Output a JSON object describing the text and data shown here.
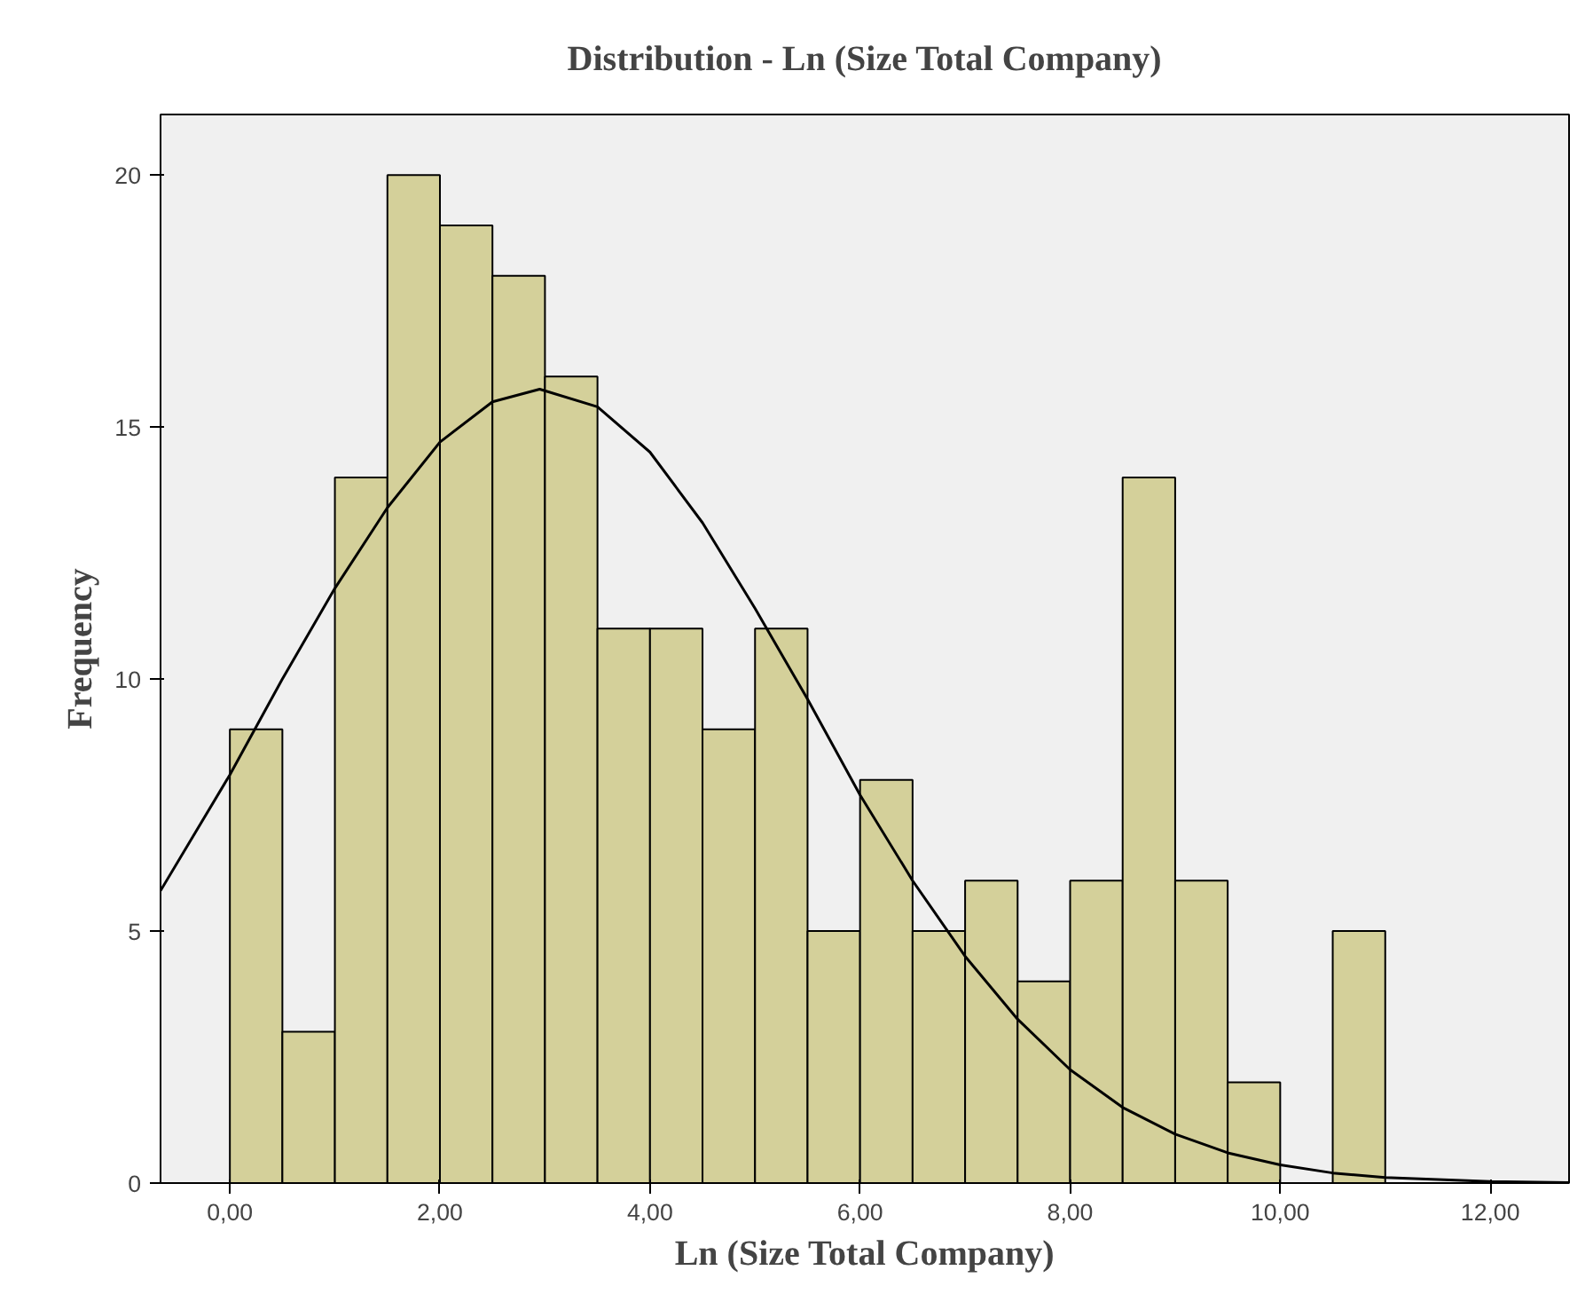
{
  "chart_data": {
    "type": "histogram",
    "title": "Distribution - Ln (Size Total Company)",
    "xlabel": "Ln (Size Total Company)",
    "ylabel": "Frequency",
    "bins": [
      0,
      0.5,
      1,
      1.5,
      2,
      2.5,
      3,
      3.5,
      4,
      4.5,
      5,
      5.5,
      6,
      6.5,
      7,
      7.5,
      8,
      8.5,
      9,
      9.5,
      10,
      10.5,
      11
    ],
    "values": [
      9,
      3,
      14,
      20,
      19,
      18,
      16,
      11,
      11,
      9,
      11,
      5,
      8,
      5,
      6,
      4,
      6,
      14,
      6,
      2,
      0,
      5
    ],
    "color": "#d4d09a",
    "series": [
      {
        "type": "line",
        "color": "#000000",
        "x": [
          -0.66,
          0,
          0.5,
          1,
          1.5,
          2,
          2.5,
          2.95,
          3.5,
          4,
          4.5,
          5,
          5.5,
          6,
          6.5,
          7,
          7.5,
          8,
          8.5,
          9,
          9.5,
          10,
          10.5,
          11,
          12,
          12.75
        ],
        "values": [
          5.8,
          8.1,
          10.0,
          11.8,
          13.4,
          14.7,
          15.5,
          15.75,
          15.4,
          14.5,
          13.1,
          11.4,
          9.6,
          7.7,
          6.0,
          4.5,
          3.25,
          2.25,
          1.5,
          0.97,
          0.6,
          0.36,
          0.2,
          0.11,
          0.03,
          0.01
        ]
      }
    ],
    "xlim": [
      -0.66,
      12.75
    ],
    "ylim": [
      0,
      21.2
    ],
    "xticks": [
      {
        "value": 0,
        "label": "0,00"
      },
      {
        "value": 2,
        "label": "2,00"
      },
      {
        "value": 4,
        "label": "4,00"
      },
      {
        "value": 6,
        "label": "6,00"
      },
      {
        "value": 8,
        "label": "8,00"
      },
      {
        "value": 10,
        "label": "10,00"
      },
      {
        "value": 12,
        "label": "12,00"
      }
    ],
    "yticks": [
      0,
      5,
      10,
      15,
      20
    ],
    "grid": false
  }
}
